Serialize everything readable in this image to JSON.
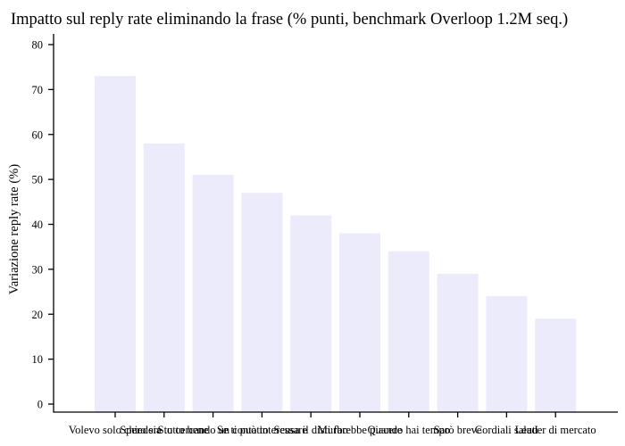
{
  "chart_data": {
    "type": "bar",
    "title": "Impatto sul reply rate eliminando la frase (% punti, benchmark Overloop 1.2M seq.)",
    "ylabel": "Variazione reply rate (%)",
    "xlabel": "",
    "ylim": [
      0,
      80
    ],
    "yticks": [
      0,
      10,
      20,
      30,
      40,
      50,
      60,
      70,
      80
    ],
    "categories": [
      "Volevo solo chiedere",
      "Spero sia tutto bene",
      "Sto cercando un contatto",
      "Se ti può interessare",
      "Scusa il disturbo",
      "Mi farebbe piacere",
      "Quando hai tempo",
      "Sarò breve",
      "Cordiali saluti",
      "Leader di mercato"
    ],
    "values": [
      73,
      58,
      51,
      47,
      42,
      38,
      34,
      29,
      24,
      19
    ],
    "bar_color": "#ebebfc",
    "grid": false
  }
}
